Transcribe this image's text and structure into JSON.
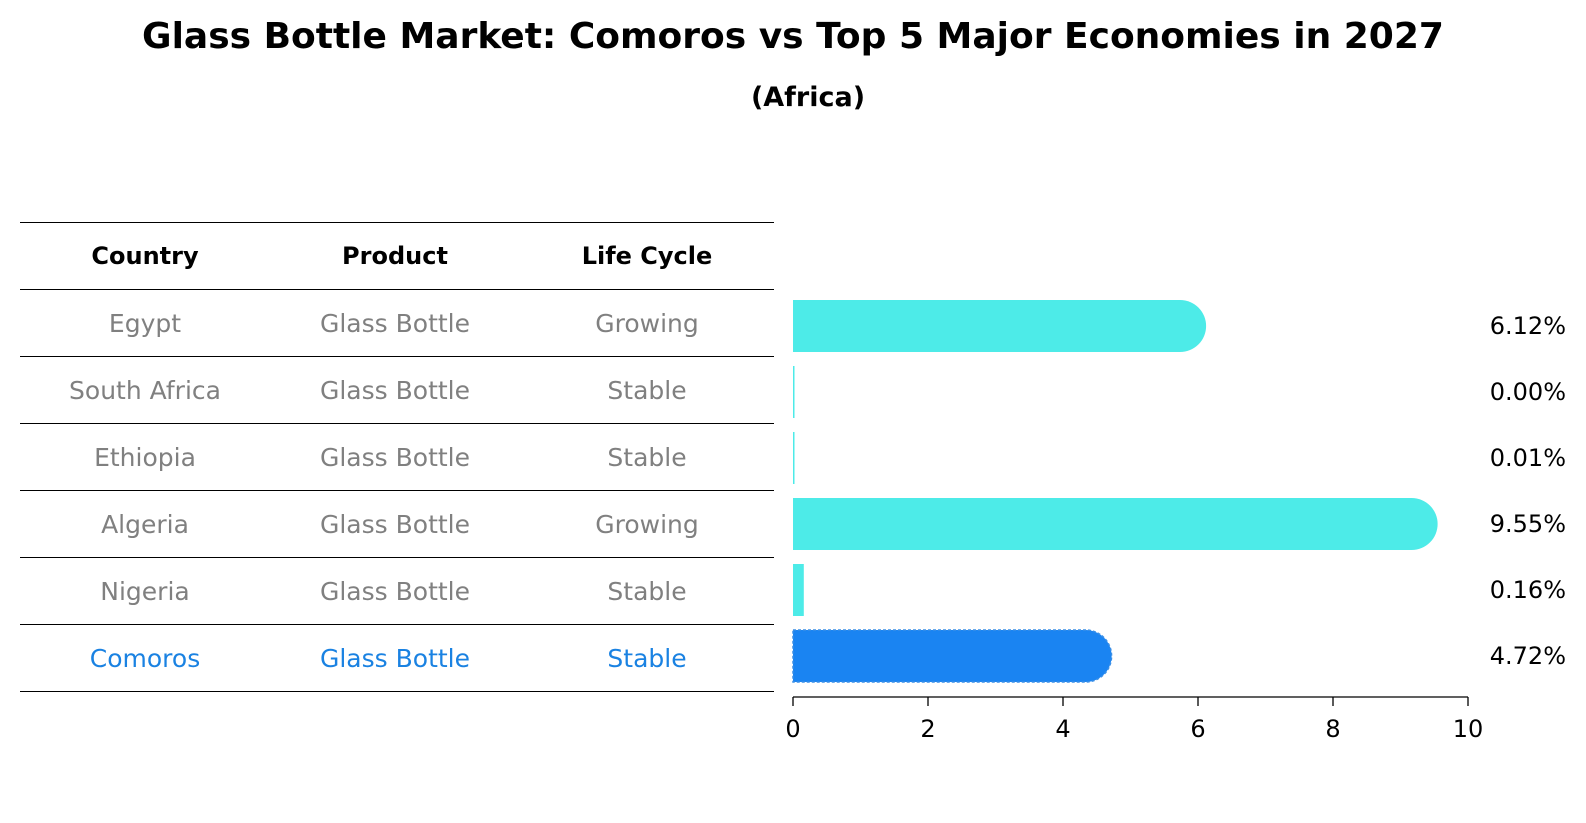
{
  "title": "Glass Bottle Market: Comoros vs Top 5 Major Economies in 2027",
  "subtitle": "(Africa)",
  "table": {
    "headers": [
      "Country",
      "Product",
      "Life Cycle"
    ],
    "rows": [
      {
        "country": "Egypt",
        "product": "Glass Bottle",
        "life_cycle": "Growing",
        "highlight": false
      },
      {
        "country": "South Africa",
        "product": "Glass Bottle",
        "life_cycle": "Stable",
        "highlight": false
      },
      {
        "country": "Ethiopia",
        "product": "Glass Bottle",
        "life_cycle": "Stable",
        "highlight": false
      },
      {
        "country": "Algeria",
        "product": "Glass Bottle",
        "life_cycle": "Growing",
        "highlight": false
      },
      {
        "country": "Nigeria",
        "product": "Glass Bottle",
        "life_cycle": "Stable",
        "highlight": false
      },
      {
        "country": "Comoros",
        "product": "Glass Bottle",
        "life_cycle": "Stable",
        "highlight": true
      }
    ]
  },
  "colors": {
    "bar": "#4debe8",
    "highlight_bar": "#1a84f2",
    "highlight_text": "#1a82e2",
    "row_text": "#808080"
  },
  "chart_data": {
    "type": "bar",
    "orientation": "horizontal",
    "categories": [
      "Egypt",
      "South Africa",
      "Ethiopia",
      "Algeria",
      "Nigeria",
      "Comoros"
    ],
    "values": [
      6.12,
      0.0,
      0.01,
      9.55,
      0.16,
      4.72
    ],
    "value_labels": [
      "6.12%",
      "0.00%",
      "0.01%",
      "9.55%",
      "0.16%",
      "4.72%"
    ],
    "highlight_category": "Comoros",
    "xlim": [
      0,
      10
    ],
    "xticks": [
      "0",
      "2",
      "4",
      "6",
      "8",
      "10"
    ],
    "bar_style": "rounded-end",
    "grid": false
  }
}
